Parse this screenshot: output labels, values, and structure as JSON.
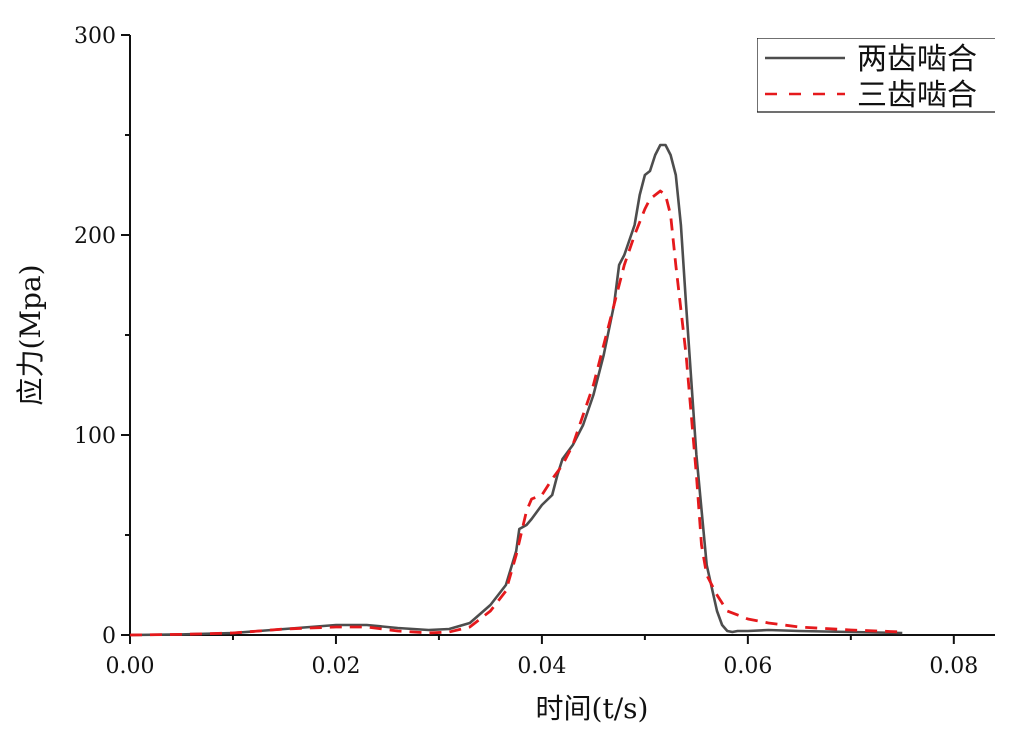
{
  "chart_data": {
    "type": "line",
    "title": "",
    "xlabel": "时间(t/s)",
    "ylabel": "应力(Mpa)",
    "xlim": [
      0,
      0.084
    ],
    "ylim": [
      0,
      300
    ],
    "xticks": [
      0,
      0.02,
      0.04,
      0.06,
      0.08
    ],
    "xtick_labels": [
      "0.00",
      "0.02",
      "0.04",
      "0.06",
      "0.08"
    ],
    "yticks": [
      0,
      100,
      200,
      300
    ],
    "ytick_labels": [
      "0",
      "100",
      "200",
      "300"
    ],
    "grid": false,
    "legend_position": "top-right",
    "series": [
      {
        "name": "两齿啮合",
        "color": "#4d4d4d",
        "dash": "solid",
        "x": [
          0,
          0.005,
          0.01,
          0.015,
          0.02,
          0.023,
          0.026,
          0.029,
          0.031,
          0.033,
          0.035,
          0.0365,
          0.0375,
          0.0378,
          0.0385,
          0.039,
          0.04,
          0.041,
          0.0415,
          0.042,
          0.043,
          0.044,
          0.045,
          0.046,
          0.047,
          0.0475,
          0.048,
          0.049,
          0.0495,
          0.05,
          0.0505,
          0.051,
          0.0515,
          0.052,
          0.0525,
          0.053,
          0.0535,
          0.054,
          0.055,
          0.056,
          0.057,
          0.0575,
          0.058,
          0.0585,
          0.059,
          0.06,
          0.062,
          0.065,
          0.07,
          0.075
        ],
        "y": [
          0,
          0.3,
          1,
          3,
          5,
          5,
          3.5,
          2.5,
          3,
          6,
          15,
          25,
          42,
          53,
          55,
          58,
          65,
          70,
          80,
          88,
          95,
          105,
          120,
          140,
          165,
          185,
          190,
          205,
          220,
          230,
          232,
          240,
          245,
          245,
          240,
          230,
          205,
          165,
          90,
          35,
          12,
          5,
          2,
          1.5,
          2,
          2,
          2.5,
          2,
          1.5,
          1
        ]
      },
      {
        "name": "三齿啮合",
        "color": "#e5191c",
        "dash": "dashed",
        "x": [
          0,
          0.005,
          0.01,
          0.015,
          0.02,
          0.023,
          0.026,
          0.029,
          0.031,
          0.033,
          0.035,
          0.0365,
          0.0375,
          0.0385,
          0.039,
          0.04,
          0.041,
          0.042,
          0.043,
          0.044,
          0.045,
          0.046,
          0.047,
          0.048,
          0.049,
          0.05,
          0.0505,
          0.051,
          0.0515,
          0.052,
          0.0525,
          0.053,
          0.054,
          0.055,
          0.0555,
          0.056,
          0.057,
          0.058,
          0.06,
          0.062,
          0.065,
          0.07,
          0.075
        ],
        "y": [
          0,
          0.3,
          1,
          3,
          4,
          4,
          2,
          1,
          1.5,
          4,
          12,
          22,
          40,
          62,
          68,
          70,
          78,
          85,
          95,
          110,
          125,
          145,
          165,
          185,
          200,
          213,
          218,
          220,
          222,
          220,
          210,
          185,
          140,
          80,
          45,
          30,
          20,
          12,
          8,
          6,
          4,
          2.5,
          1.5
        ]
      }
    ]
  }
}
